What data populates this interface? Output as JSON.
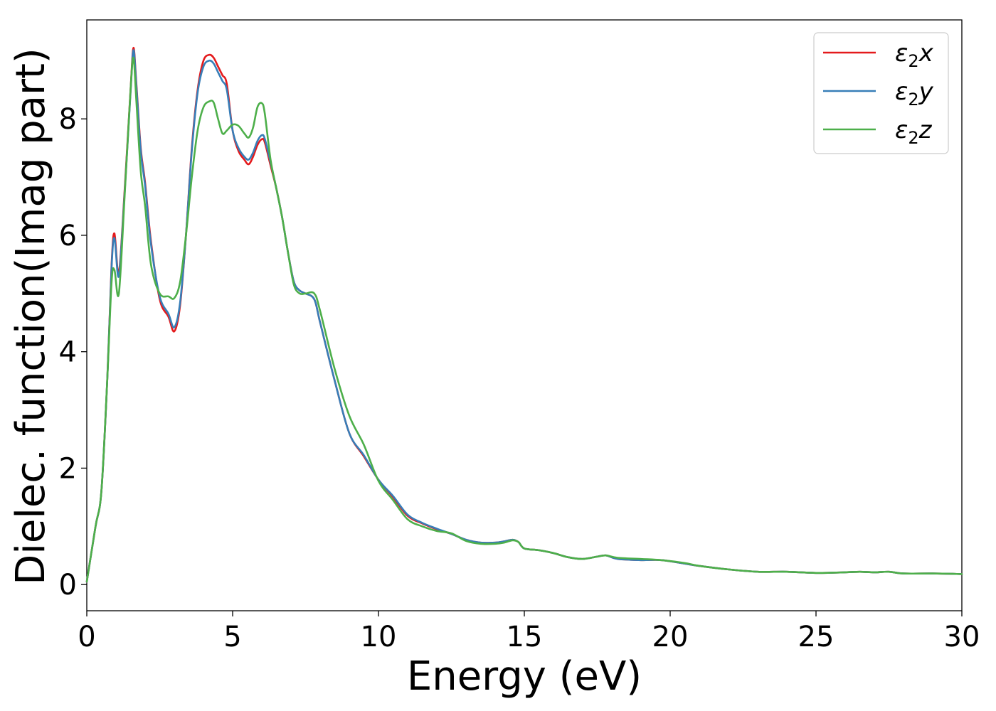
{
  "chart_data": {
    "type": "line",
    "title": "",
    "xlabel": "Energy (eV)",
    "ylabel": "Dielec. function(Imag part)",
    "xlim": [
      0,
      30
    ],
    "ylim": [
      -0.45,
      9.7
    ],
    "xticks": [
      "0",
      "5",
      "10",
      "15",
      "20",
      "25",
      "30"
    ],
    "yticks": [
      "0",
      "2",
      "4",
      "6",
      "8"
    ],
    "grid": false,
    "legend_position": "top-right",
    "series": [
      {
        "name": "ε2x",
        "legend_main": "ε",
        "legend_sub": "2",
        "legend_suffix": "x",
        "color": "#e41a1c",
        "x": [
          0,
          0.3,
          0.5,
          0.7,
          0.85,
          0.95,
          1.1,
          1.3,
          1.5,
          1.6,
          1.7,
          1.85,
          2.0,
          2.2,
          2.5,
          2.8,
          3.0,
          3.2,
          3.4,
          3.6,
          3.8,
          4.0,
          4.2,
          4.35,
          4.5,
          4.65,
          4.8,
          5.0,
          5.2,
          5.4,
          5.55,
          5.7,
          5.85,
          6.0,
          6.1,
          6.3,
          6.5,
          6.7,
          6.9,
          7.1,
          7.3,
          7.5,
          7.8,
          8.0,
          8.5,
          9.0,
          9.5,
          10.0,
          10.5,
          11.0,
          11.5,
          12.0,
          12.5,
          13.0,
          13.5,
          14.0,
          14.3,
          14.6,
          14.8,
          15.0,
          15.5,
          16.0,
          16.5,
          17.0,
          17.5,
          17.8,
          18.2,
          19.0,
          19.7,
          20.5,
          21.0,
          22.0,
          23.0,
          24.0,
          25.0,
          26.0,
          26.5,
          27.0,
          27.5,
          28.0,
          29.0,
          30.0
        ],
        "y": [
          0.05,
          1.0,
          1.6,
          3.5,
          5.5,
          6.03,
          5.35,
          6.8,
          8.5,
          9.22,
          8.6,
          7.5,
          6.9,
          5.9,
          4.9,
          4.6,
          4.35,
          4.8,
          6.0,
          7.5,
          8.5,
          9.0,
          9.1,
          9.05,
          8.9,
          8.75,
          8.6,
          7.8,
          7.45,
          7.3,
          7.22,
          7.35,
          7.55,
          7.65,
          7.6,
          7.2,
          6.8,
          6.3,
          5.7,
          5.2,
          5.05,
          5.0,
          4.9,
          4.5,
          3.5,
          2.6,
          2.2,
          1.8,
          1.5,
          1.18,
          1.05,
          0.95,
          0.87,
          0.77,
          0.72,
          0.72,
          0.74,
          0.77,
          0.73,
          0.62,
          0.59,
          0.54,
          0.47,
          0.44,
          0.48,
          0.5,
          0.44,
          0.42,
          0.42,
          0.36,
          0.32,
          0.26,
          0.22,
          0.22,
          0.2,
          0.21,
          0.22,
          0.21,
          0.22,
          0.19,
          0.19,
          0.18
        ]
      },
      {
        "name": "ε2y",
        "legend_main": "ε",
        "legend_sub": "2",
        "legend_suffix": "y",
        "color": "#377eb8",
        "x": [
          0,
          0.3,
          0.5,
          0.7,
          0.85,
          0.95,
          1.1,
          1.3,
          1.5,
          1.6,
          1.7,
          1.85,
          2.0,
          2.2,
          2.5,
          2.8,
          3.0,
          3.2,
          3.4,
          3.6,
          3.8,
          4.0,
          4.2,
          4.35,
          4.5,
          4.65,
          4.8,
          5.0,
          5.2,
          5.4,
          5.55,
          5.7,
          5.85,
          6.0,
          6.1,
          6.3,
          6.5,
          6.7,
          6.9,
          7.1,
          7.3,
          7.5,
          7.8,
          8.0,
          8.5,
          9.0,
          9.5,
          10.0,
          10.5,
          11.0,
          11.5,
          12.0,
          12.5,
          13.0,
          13.5,
          14.0,
          14.3,
          14.6,
          14.8,
          15.0,
          15.5,
          16.0,
          16.5,
          17.0,
          17.5,
          17.8,
          18.2,
          19.0,
          19.7,
          20.5,
          21.0,
          22.0,
          23.0,
          24.0,
          25.0,
          26.0,
          26.5,
          27.0,
          27.5,
          28.0,
          29.0,
          30.0
        ],
        "y": [
          0.05,
          1.0,
          1.6,
          3.5,
          5.45,
          5.95,
          5.3,
          6.75,
          8.45,
          9.18,
          8.55,
          7.45,
          6.85,
          5.85,
          4.95,
          4.65,
          4.42,
          4.85,
          6.0,
          7.45,
          8.45,
          8.9,
          9.0,
          8.95,
          8.8,
          8.65,
          8.5,
          7.8,
          7.5,
          7.35,
          7.3,
          7.42,
          7.62,
          7.72,
          7.66,
          7.25,
          6.8,
          6.3,
          5.7,
          5.2,
          5.05,
          5.0,
          4.9,
          4.5,
          3.5,
          2.6,
          2.22,
          1.8,
          1.52,
          1.2,
          1.06,
          0.96,
          0.87,
          0.77,
          0.72,
          0.72,
          0.74,
          0.77,
          0.73,
          0.62,
          0.59,
          0.54,
          0.47,
          0.44,
          0.48,
          0.5,
          0.44,
          0.42,
          0.42,
          0.36,
          0.32,
          0.26,
          0.22,
          0.22,
          0.2,
          0.21,
          0.22,
          0.21,
          0.22,
          0.19,
          0.19,
          0.18
        ]
      },
      {
        "name": "ε2z",
        "legend_main": "ε",
        "legend_sub": "2",
        "legend_suffix": "z",
        "color": "#4daf4a",
        "x": [
          0,
          0.3,
          0.5,
          0.7,
          0.85,
          0.95,
          1.1,
          1.3,
          1.5,
          1.6,
          1.7,
          1.85,
          2.0,
          2.2,
          2.5,
          2.8,
          3.0,
          3.2,
          3.4,
          3.6,
          3.8,
          4.0,
          4.2,
          4.35,
          4.5,
          4.65,
          4.8,
          5.0,
          5.2,
          5.4,
          5.55,
          5.7,
          5.85,
          6.0,
          6.1,
          6.3,
          6.5,
          6.7,
          6.9,
          7.1,
          7.3,
          7.5,
          7.8,
          8.0,
          8.5,
          9.0,
          9.5,
          10.0,
          10.5,
          11.0,
          11.5,
          12.0,
          12.5,
          13.0,
          13.5,
          14.0,
          14.3,
          14.6,
          14.8,
          15.0,
          15.5,
          16.0,
          16.5,
          17.0,
          17.5,
          17.8,
          18.2,
          19.0,
          19.7,
          20.5,
          21.0,
          22.0,
          23.0,
          24.0,
          25.0,
          26.0,
          26.5,
          27.0,
          27.5,
          28.0,
          29.0,
          30.0
        ],
        "y": [
          0.05,
          1.0,
          1.6,
          3.5,
          5.2,
          5.4,
          5.0,
          6.7,
          8.5,
          9.05,
          8.3,
          7.1,
          6.5,
          5.5,
          5.0,
          4.95,
          4.92,
          5.2,
          6.0,
          7.0,
          7.8,
          8.2,
          8.3,
          8.28,
          8.0,
          7.75,
          7.8,
          7.9,
          7.88,
          7.75,
          7.68,
          7.85,
          8.2,
          8.27,
          8.1,
          7.3,
          6.8,
          6.3,
          5.7,
          5.15,
          5.0,
          5.0,
          5.0,
          4.7,
          3.7,
          2.9,
          2.4,
          1.78,
          1.45,
          1.12,
          1.0,
          0.92,
          0.88,
          0.75,
          0.7,
          0.7,
          0.72,
          0.76,
          0.73,
          0.62,
          0.59,
          0.54,
          0.47,
          0.44,
          0.48,
          0.5,
          0.46,
          0.44,
          0.42,
          0.37,
          0.32,
          0.26,
          0.22,
          0.22,
          0.2,
          0.21,
          0.22,
          0.21,
          0.22,
          0.19,
          0.19,
          0.18
        ]
      }
    ]
  }
}
